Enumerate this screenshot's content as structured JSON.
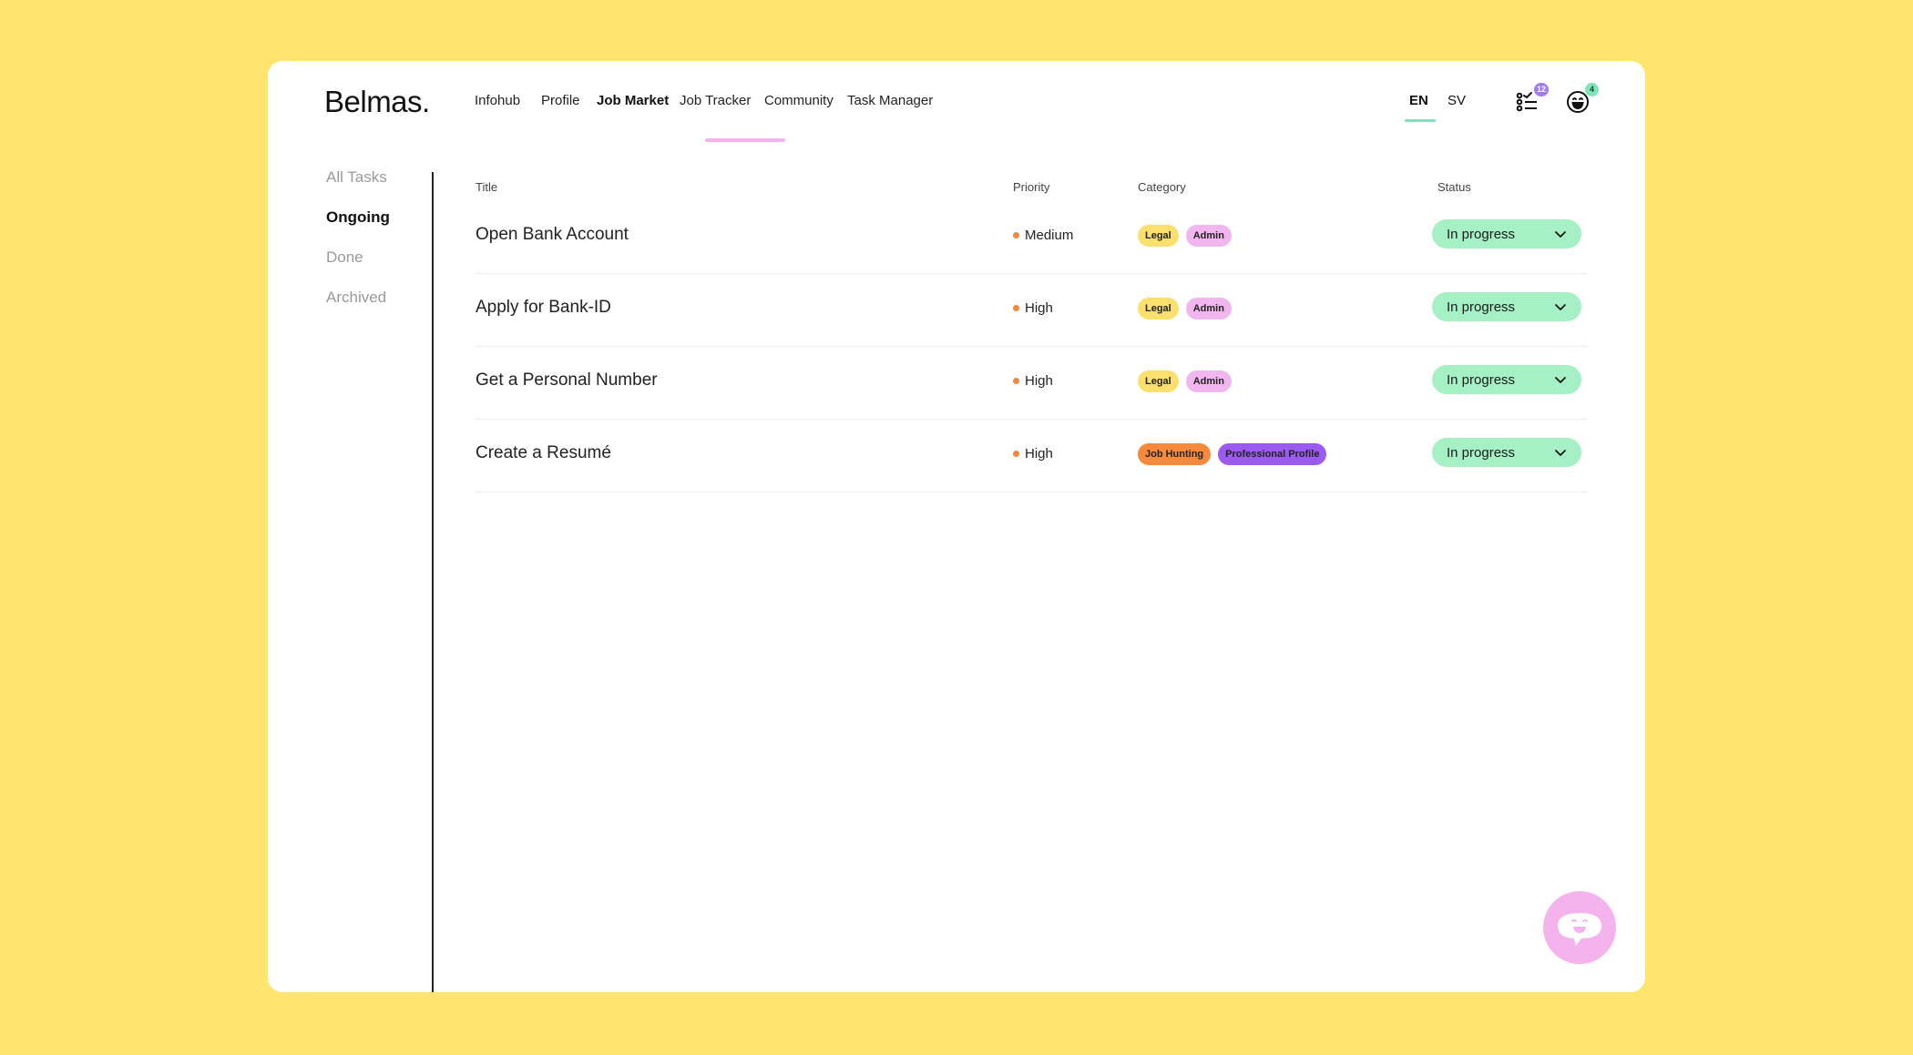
{
  "brand": "Belmas.",
  "nav": {
    "items": [
      "Infohub",
      "Profile",
      "Job Market",
      "Job Tracker",
      "Community",
      "Task Manager"
    ],
    "active": "Job Market"
  },
  "languages": {
    "en": "EN",
    "sv": "SV",
    "active": "EN"
  },
  "header_icons": {
    "tasks": {
      "icon": "checklist-icon",
      "badge": "12"
    },
    "profile": {
      "icon": "smiley-icon",
      "badge": "4"
    }
  },
  "sidebar": {
    "items": [
      "All Tasks",
      "Ongoing",
      "Done",
      "Archived"
    ],
    "active": "Ongoing"
  },
  "table": {
    "headers": {
      "title": "Title",
      "priority": "Priority",
      "category": "Category",
      "status": "Status"
    },
    "rows": [
      {
        "title": "Open Bank Account",
        "priority": "Medium",
        "categories": [
          "Legal",
          "Admin"
        ],
        "status": "In progress"
      },
      {
        "title": "Apply for Bank-ID",
        "priority": "High",
        "categories": [
          "Legal",
          "Admin"
        ],
        "status": "In progress"
      },
      {
        "title": "Get a Personal Number",
        "priority": "High",
        "categories": [
          "Legal",
          "Admin"
        ],
        "status": "In progress"
      },
      {
        "title": "Create a Resumé",
        "priority": "High",
        "categories": [
          "Job Hunting",
          "Professional Profile"
        ],
        "status": "In progress"
      }
    ]
  },
  "colors": {
    "background": "#FFE56D",
    "nav_underline": "#F4B3EC",
    "lang_underline": "#7FE2B9",
    "status_bg": "#A6F0C6",
    "priority_dot": "#F08A3A",
    "tag_legal": "#FBE06E",
    "tag_admin": "#F2B6EF",
    "tag_job_hunting": "#F58A3C",
    "tag_professional_profile": "#9B5BF0",
    "chat_button": "#F4B3EC"
  }
}
